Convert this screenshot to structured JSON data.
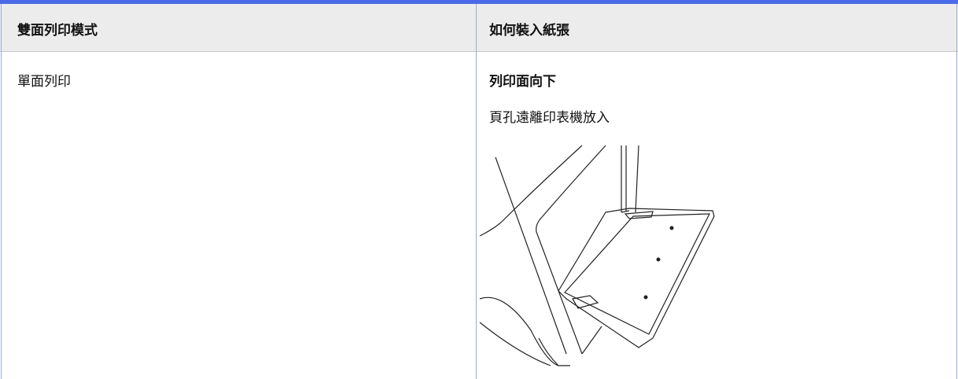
{
  "table": {
    "headers": [
      "雙面列印模式",
      "如何裝入紙張"
    ],
    "rows": [
      {
        "mode": "單面列印",
        "heading": "列印面向下",
        "instruction": "頁孔遠離印表機放入"
      }
    ]
  }
}
